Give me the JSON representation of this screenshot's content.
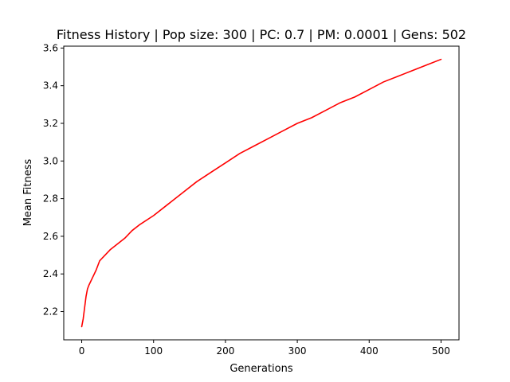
{
  "chart_data": {
    "type": "line",
    "title": "Fitness History | Pop size: 300 | PC: 0.7 | PM: 0.0001 | Gens: 502",
    "xlabel": "Generations",
    "ylabel": "Mean Fitness",
    "xlim": [
      -25,
      525
    ],
    "ylim": [
      2.05,
      3.61
    ],
    "xticks": [
      0,
      100,
      200,
      300,
      400,
      500
    ],
    "xtick_labels": [
      "0",
      "100",
      "200",
      "300",
      "400",
      "500"
    ],
    "yticks": [
      2.2,
      2.4,
      2.6,
      2.8,
      3.0,
      3.2,
      3.4,
      3.6
    ],
    "ytick_labels": [
      "2.2",
      "2.4",
      "2.6",
      "2.8",
      "3.0",
      "3.2",
      "3.4",
      "3.6"
    ],
    "grid": false,
    "series": [
      {
        "color": "#ff0000",
        "x": [
          0,
          2,
          4,
          6,
          8,
          10,
          15,
          20,
          25,
          30,
          40,
          50,
          60,
          70,
          80,
          100,
          120,
          140,
          160,
          180,
          200,
          220,
          240,
          260,
          280,
          300,
          320,
          340,
          360,
          380,
          400,
          420,
          440,
          460,
          480,
          500
        ],
        "y": [
          2.12,
          2.16,
          2.22,
          2.28,
          2.32,
          2.34,
          2.38,
          2.42,
          2.47,
          2.49,
          2.53,
          2.56,
          2.59,
          2.63,
          2.66,
          2.71,
          2.77,
          2.83,
          2.89,
          2.94,
          2.99,
          3.04,
          3.08,
          3.12,
          3.16,
          3.2,
          3.23,
          3.27,
          3.31,
          3.34,
          3.38,
          3.42,
          3.45,
          3.48,
          3.51,
          3.54
        ]
      }
    ]
  }
}
